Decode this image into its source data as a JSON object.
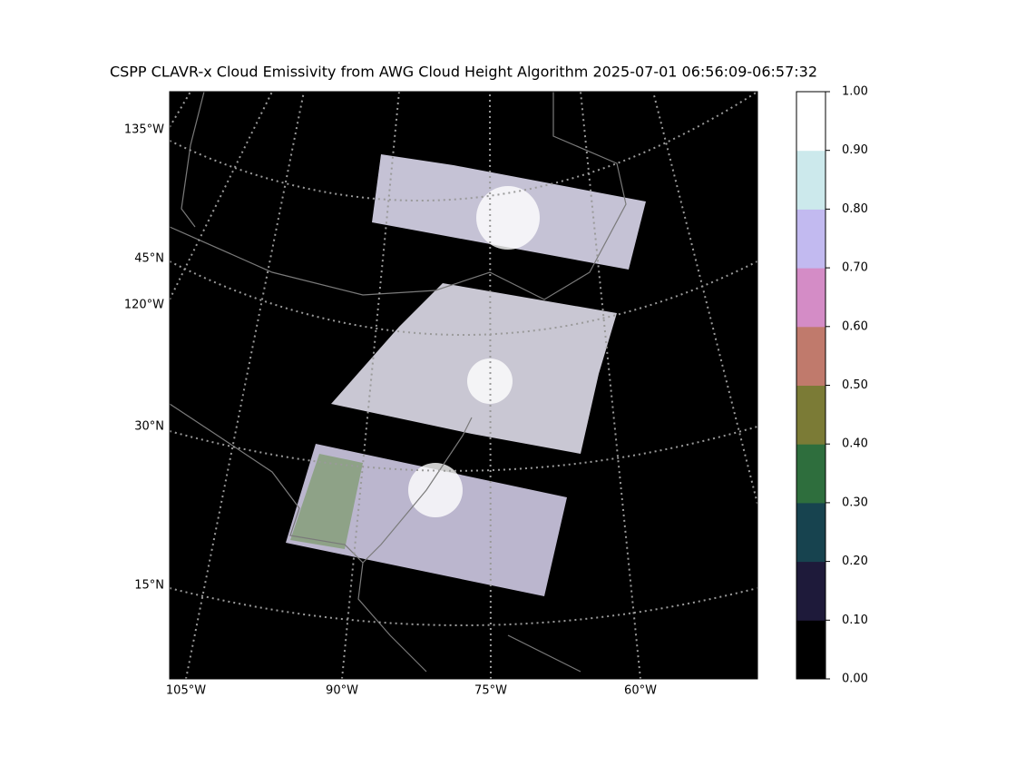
{
  "title": "CSPP CLAVR-x Cloud Emissivity from AWG Cloud Height Algorithm 2025-07-01 06:56:09-06:57:32",
  "map": {
    "lon_labels": [
      "105°W",
      "90°W",
      "75°W",
      "60°W"
    ],
    "lat_labels": [
      "135°W",
      "45°N",
      "120°W",
      "30°N",
      "15°N"
    ]
  },
  "colorbar": {
    "range": [
      0,
      1
    ],
    "colors": [
      "#000000",
      "#1e1a3a",
      "#17434f",
      "#2e6e3d",
      "#7b7b36",
      "#c07a6c",
      "#d48cc6",
      "#c2baf0",
      "#cce9ec",
      "#ffffff"
    ],
    "ticks": [
      {
        "value": 0,
        "label": "0.00"
      },
      {
        "value": 0.1,
        "label": "0.10"
      },
      {
        "value": 0.2,
        "label": "0.20"
      },
      {
        "value": 0.3,
        "label": "0.30"
      },
      {
        "value": 0.4,
        "label": "0.40"
      },
      {
        "value": 0.5,
        "label": "0.50"
      },
      {
        "value": 0.6,
        "label": "0.60"
      },
      {
        "value": 0.7,
        "label": "0.70"
      },
      {
        "value": 0.8,
        "label": "0.80"
      },
      {
        "value": 0.9,
        "label": "0.90"
      },
      {
        "value": 1,
        "label": "1.00"
      }
    ]
  }
}
